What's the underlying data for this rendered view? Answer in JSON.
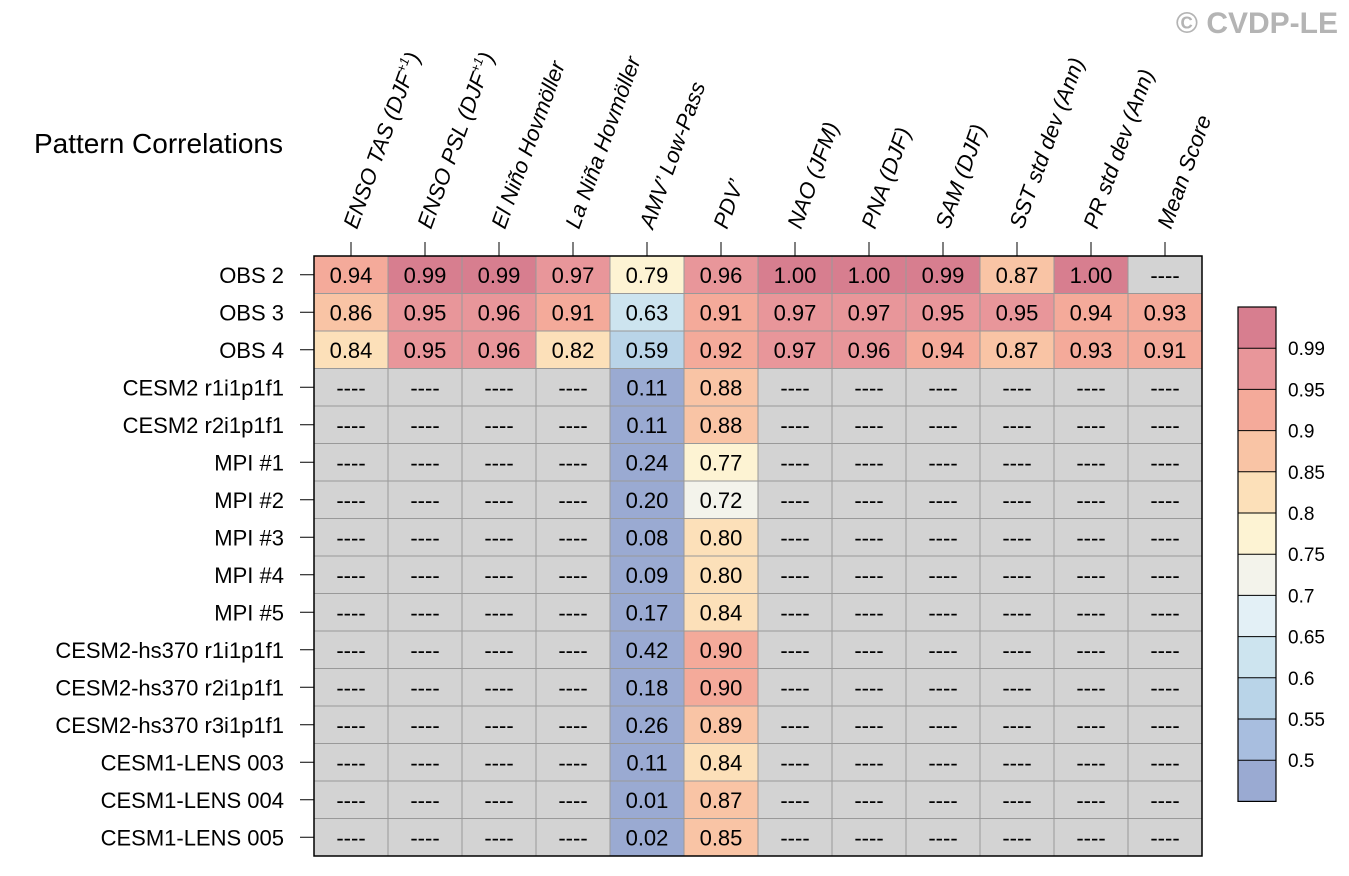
{
  "copyright": "© CVDP-LE",
  "chart_data": {
    "type": "heatmap",
    "title": "Pattern Correlations",
    "columns": [
      {
        "pre": "ENSO TAS (DJF",
        "sup": "+1",
        "post": ")"
      },
      {
        "pre": "ENSO PSL (DJF",
        "sup": "+1",
        "post": ")"
      },
      {
        "pre": "El Niño Hovmöller"
      },
      {
        "pre": "La Niña Hovmöller"
      },
      {
        "pre": "AMV’ Low-Pass"
      },
      {
        "pre": "PDV’"
      },
      {
        "pre": "NAO (JFM)"
      },
      {
        "pre": "PNA (DJF)"
      },
      {
        "pre": "SAM (DJF)"
      },
      {
        "pre": "SST std dev (Ann)"
      },
      {
        "pre": "PR std dev (Ann)"
      },
      {
        "pre": "Mean Score"
      }
    ],
    "rows": [
      "OBS 2",
      "OBS 3",
      "OBS 4",
      "CESM2 r1i1p1f1",
      "CESM2 r2i1p1f1",
      "MPI #1",
      "MPI #2",
      "MPI #3",
      "MPI #4",
      "MPI #5",
      "CESM2-hs370 r1i1p1f1",
      "CESM2-hs370 r2i1p1f1",
      "CESM2-hs370 r3i1p1f1",
      "CESM1-LENS 003",
      "CESM1-LENS 004",
      "CESM1-LENS 005"
    ],
    "values": [
      [
        "0.94",
        "0.99",
        "0.99",
        "0.97",
        "0.79",
        "0.96",
        "1.00",
        "1.00",
        "0.99",
        "0.87",
        "1.00",
        "----"
      ],
      [
        "0.86",
        "0.95",
        "0.96",
        "0.91",
        "0.63",
        "0.91",
        "0.97",
        "0.97",
        "0.95",
        "0.95",
        "0.94",
        "0.93"
      ],
      [
        "0.84",
        "0.95",
        "0.96",
        "0.82",
        "0.59",
        "0.92",
        "0.97",
        "0.96",
        "0.94",
        "0.87",
        "0.93",
        "0.91"
      ],
      [
        "----",
        "----",
        "----",
        "----",
        "0.11",
        "0.88",
        "----",
        "----",
        "----",
        "----",
        "----",
        "----"
      ],
      [
        "----",
        "----",
        "----",
        "----",
        "0.11",
        "0.88",
        "----",
        "----",
        "----",
        "----",
        "----",
        "----"
      ],
      [
        "----",
        "----",
        "----",
        "----",
        "0.24",
        "0.77",
        "----",
        "----",
        "----",
        "----",
        "----",
        "----"
      ],
      [
        "----",
        "----",
        "----",
        "----",
        "0.20",
        "0.72",
        "----",
        "----",
        "----",
        "----",
        "----",
        "----"
      ],
      [
        "----",
        "----",
        "----",
        "----",
        "0.08",
        "0.80",
        "----",
        "----",
        "----",
        "----",
        "----",
        "----"
      ],
      [
        "----",
        "----",
        "----",
        "----",
        "0.09",
        "0.80",
        "----",
        "----",
        "----",
        "----",
        "----",
        "----"
      ],
      [
        "----",
        "----",
        "----",
        "----",
        "0.17",
        "0.84",
        "----",
        "----",
        "----",
        "----",
        "----",
        "----"
      ],
      [
        "----",
        "----",
        "----",
        "----",
        "0.42",
        "0.90",
        "----",
        "----",
        "----",
        "----",
        "----",
        "----"
      ],
      [
        "----",
        "----",
        "----",
        "----",
        "0.18",
        "0.90",
        "----",
        "----",
        "----",
        "----",
        "----",
        "----"
      ],
      [
        "----",
        "----",
        "----",
        "----",
        "0.26",
        "0.89",
        "----",
        "----",
        "----",
        "----",
        "----",
        "----"
      ],
      [
        "----",
        "----",
        "----",
        "----",
        "0.11",
        "0.84",
        "----",
        "----",
        "----",
        "----",
        "----",
        "----"
      ],
      [
        "----",
        "----",
        "----",
        "----",
        "0.01",
        "0.87",
        "----",
        "----",
        "----",
        "----",
        "----",
        "----"
      ],
      [
        "----",
        "----",
        "----",
        "----",
        "0.02",
        "0.85",
        "----",
        "----",
        "----",
        "----",
        "----",
        "----"
      ]
    ],
    "missing_color": "#d3d3d3",
    "colorbar": {
      "tick_labels": [
        "0.99",
        "0.95",
        "0.9",
        "0.85",
        "0.8",
        "0.75",
        "0.7",
        "0.65",
        "0.6",
        "0.55",
        "0.5"
      ],
      "bands_top_to_bottom": [
        {
          "min": 0.99,
          "color": "#d77e8f"
        },
        {
          "min": 0.95,
          "color": "#e8969a"
        },
        {
          "min": 0.9,
          "color": "#f4aa9a"
        },
        {
          "min": 0.85,
          "color": "#f9c4a5"
        },
        {
          "min": 0.8,
          "color": "#fce0b9"
        },
        {
          "min": 0.75,
          "color": "#fdf3d3"
        },
        {
          "min": 0.7,
          "color": "#f3f3eb"
        },
        {
          "min": 0.65,
          "color": "#e3f0f6"
        },
        {
          "min": 0.6,
          "color": "#cde4ef"
        },
        {
          "min": 0.55,
          "color": "#b9d4e8"
        },
        {
          "min": 0.5,
          "color": "#a8bedf"
        },
        {
          "min": null,
          "color": "#9aaad2"
        }
      ]
    }
  }
}
